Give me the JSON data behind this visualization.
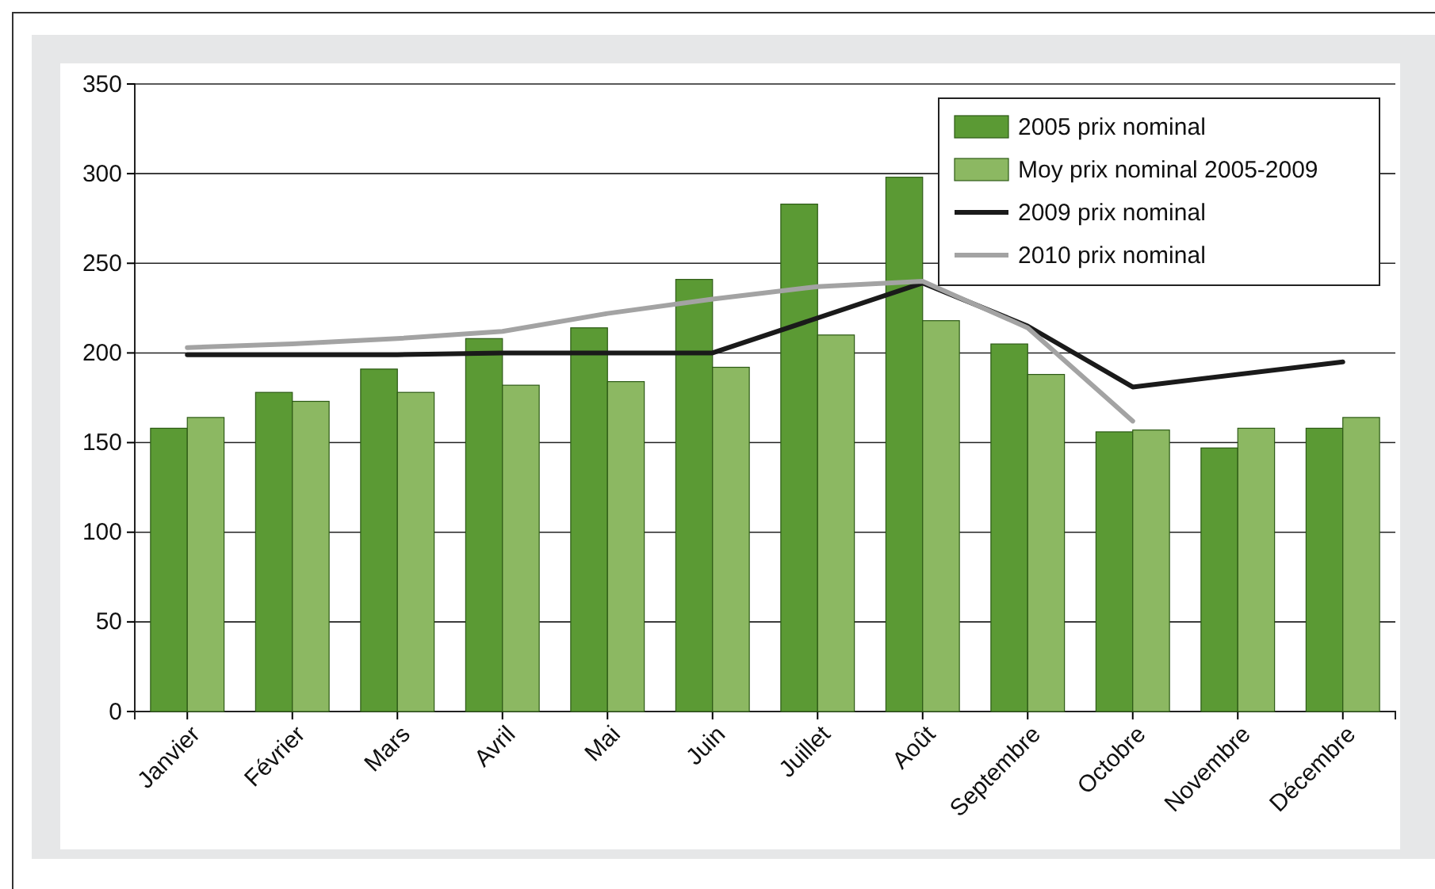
{
  "chart_data": {
    "type": "bar",
    "categories": [
      "Janvier",
      "Février",
      "Mars",
      "Avril",
      "Mai",
      "Juin",
      "Juillet",
      "Août",
      "Septembre",
      "Octobre",
      "Novembre",
      "Décembre"
    ],
    "series": [
      {
        "name": "2005 prix nominal",
        "color": "#5b9a34",
        "values": [
          158,
          178,
          191,
          208,
          214,
          241,
          283,
          298,
          205,
          156,
          147,
          158
        ]
      },
      {
        "name": "Moy prix nominal 2005-2009",
        "color": "#8cb862",
        "values": [
          164,
          173,
          178,
          182,
          184,
          192,
          210,
          218,
          188,
          157,
          158,
          164
        ]
      },
      {
        "name": "2009 prix nominal",
        "type": "line",
        "color": "#1a1a1a",
        "values": [
          199,
          199,
          199,
          200,
          200,
          200,
          null,
          239,
          215,
          181,
          null,
          195
        ]
      },
      {
        "name": "2010 prix nominal",
        "type": "line",
        "color": "#a3a3a3",
        "values": [
          203,
          205,
          208,
          212,
          222,
          230,
          237,
          240,
          214,
          162,
          null,
          null
        ]
      }
    ],
    "ylim": [
      0,
      350
    ],
    "yticks": [
      0,
      50,
      100,
      150,
      200,
      250,
      300,
      350
    ],
    "grid": "y",
    "legend": "top right"
  }
}
